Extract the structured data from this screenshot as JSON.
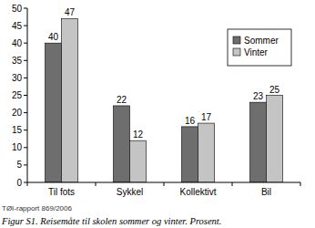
{
  "chart_data": {
    "type": "bar",
    "title": "Figur S1. Reisemåte til skolen sommer og vinter. Prosent.",
    "annotations": [
      "TØI-rapport 869/2006"
    ],
    "categories": [
      "Til fots",
      "Sykkel",
      "Kollektivt",
      "Bil"
    ],
    "series": [
      {
        "name": "Sommer",
        "color": "#6e6e6e",
        "values": [
          40,
          22,
          16,
          23
        ]
      },
      {
        "name": "Vinter",
        "color": "#c4c4c4",
        "values": [
          47,
          12,
          17,
          25
        ]
      }
    ],
    "ylim": [
      0,
      50
    ],
    "yticks": [
      0,
      5,
      10,
      15,
      20,
      25,
      30,
      35,
      40,
      45,
      50
    ],
    "grid": false,
    "legend": "top-right",
    "data_labels": true
  }
}
